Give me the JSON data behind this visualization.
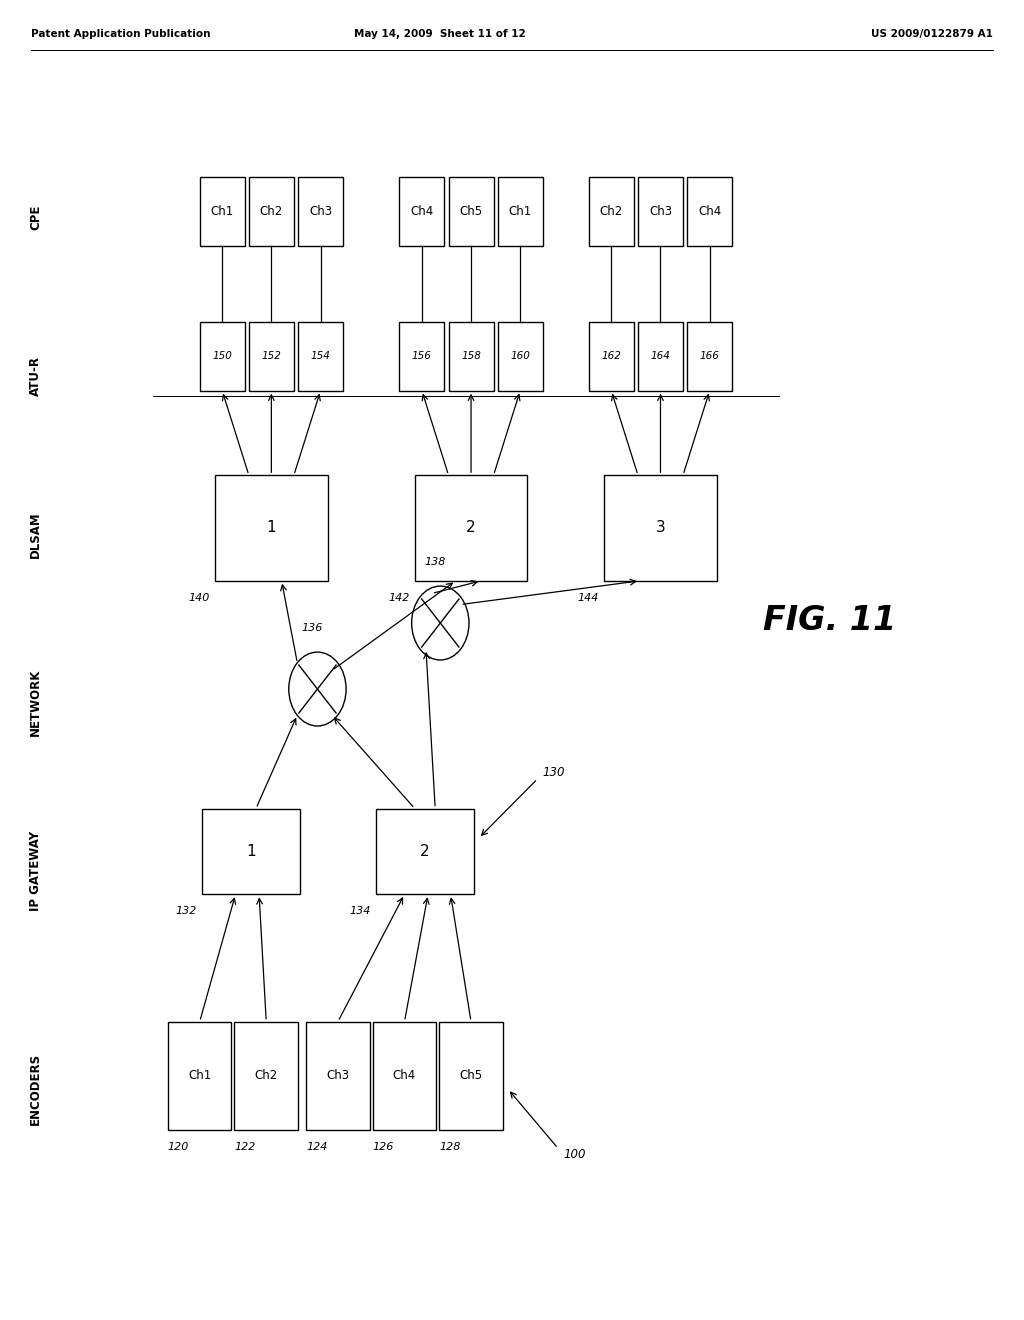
{
  "title_left": "Patent Application Publication",
  "title_center": "May 14, 2009  Sheet 11 of 12",
  "title_right": "US 2009/0122879 A1",
  "fig_label": "FIG. 11",
  "bg_color": "#ffffff",
  "line_color": "#000000"
}
